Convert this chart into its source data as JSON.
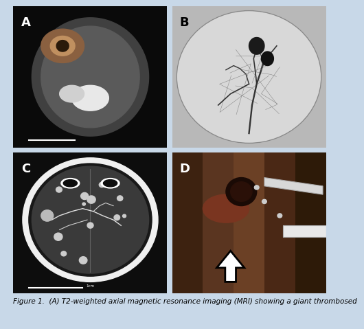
{
  "figure_background": "#d0dce8",
  "outer_bg": "#c8d8e8",
  "labels": [
    "A",
    "B",
    "C",
    "D"
  ],
  "label_color_dark": "#ffffff",
  "label_color_light": "#000000",
  "label_fontsize": 13,
  "caption": "Figure 1.  (A) T2-weighted axial magnetic resonance imaging (MRI) showing a giant thrombosed",
  "caption_fontsize": 7.5,
  "caption_color": "#000000",
  "fig_width": 4.74,
  "fig_height": 4.69
}
